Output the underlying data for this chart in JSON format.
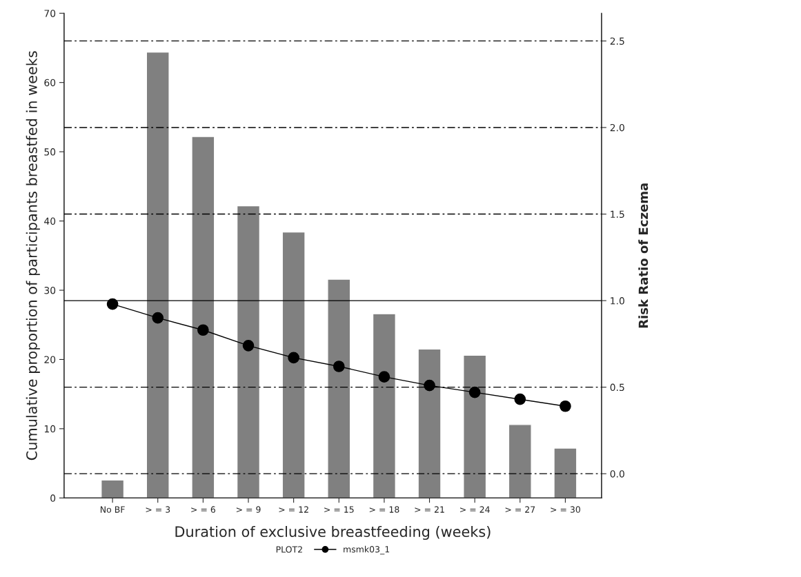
{
  "chart_data": {
    "type": "bar",
    "xlabel": "Duration of exclusive breastfeeding (weeks)",
    "ylabel": "Cumulative proportion of participants breastfed in weeks",
    "y2label": "Risk Ratio of Eczema",
    "legend_title": "PLOT2",
    "categories": [
      "No BF",
      "> = 3",
      "> = 6",
      "> = 9",
      "> = 12",
      "> = 15",
      "> = 18",
      "> = 21",
      "> = 24",
      "> = 27",
      "> = 30"
    ],
    "series": [
      {
        "color": "#808080",
        "values": [
          2.6,
          64.4,
          52.2,
          42.2,
          38.4,
          31.6,
          26.6,
          21.5,
          20.6,
          10.6,
          7.2
        ]
      },
      {
        "type": "line",
        "name": "msmk03_1",
        "axis": "y2",
        "color": "#000000",
        "marker": "circle",
        "line_style": "solid",
        "values": [
          0.98,
          0.9,
          0.83,
          0.74,
          0.67,
          0.62,
          0.56,
          0.51,
          0.47,
          0.43,
          0.39
        ]
      }
    ],
    "ylim": [
      0,
      70
    ],
    "yticks": [
      0,
      10,
      20,
      30,
      40,
      50,
      60,
      70
    ],
    "y2lim": [
      -0.14,
      2.66
    ],
    "y2ticks": [
      {
        "value": 0,
        "label": "0.0"
      },
      0.5,
      {
        "value": 1,
        "label": "1.0"
      },
      1.5,
      {
        "value": 2,
        "label": "2.0"
      },
      2.5
    ],
    "ref_lines": [
      {
        "axis": "y2",
        "value": 0,
        "line_style": "dashed",
        "color": "#000000"
      },
      {
        "axis": "y2",
        "value": 0.5,
        "line_style": "dashed",
        "color": "#000000"
      },
      {
        "axis": "y2",
        "value": 1,
        "line_style": "solid",
        "color": "#000000"
      },
      {
        "axis": "y2",
        "value": 1.5,
        "line_style": "dashed",
        "color": "#000000"
      },
      {
        "axis": "y2",
        "value": 2,
        "line_style": "dashed",
        "color": "#000000"
      },
      {
        "axis": "y2",
        "value": 2.5,
        "line_style": "dashed",
        "color": "#000000"
      }
    ],
    "grid": false,
    "legend": "bottom"
  }
}
